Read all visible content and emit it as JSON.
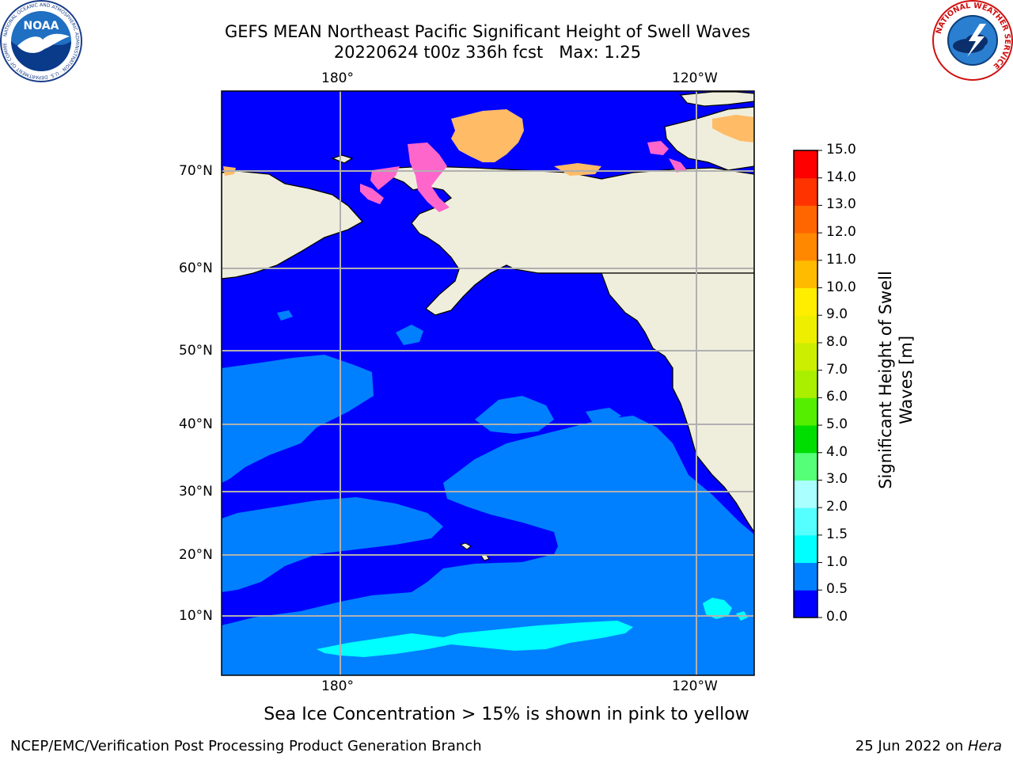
{
  "title": {
    "line1": "GEFS MEAN Northeast Pacific Significant Height of Swell Waves",
    "line2": "20220624 t00z 336h fcst   Max: 1.25"
  },
  "logos": {
    "left": "noaa-logo",
    "right": "national-weather-service-logo",
    "left_ring_text": "NATIONAL OCEANIC AND ATMOSPHERIC ADMINISTRATION · U.S. DEPARTMENT OF COMMERCE",
    "left_center_text": "NOAA",
    "right_ring_text": "NATIONAL WEATHER SERVICE"
  },
  "map": {
    "lon_labels": [
      "180°",
      "120°W"
    ],
    "lat_labels": [
      "70°N",
      "60°N",
      "50°N",
      "40°N",
      "30°N",
      "20°N",
      "10°N"
    ],
    "colors": {
      "land": "#efeedd",
      "swell_0_05": "#0000ff",
      "swell_05_1": "#0080ff",
      "swell_1_15": "#00ffff",
      "ice_pink": "#ff66cc",
      "ice_orange": "#ffbb66",
      "grid": "#b0b0b0"
    }
  },
  "colorbar": {
    "title_line1": "Significant Height of Swell",
    "title_line2": "Waves [m]",
    "ticks": [
      "0.0",
      "0.5",
      "1.0",
      "1.5",
      "2.0",
      "3.0",
      "4.0",
      "5.0",
      "6.0",
      "7.0",
      "8.0",
      "9.0",
      "10.0",
      "11.0",
      "12.0",
      "13.0",
      "14.0",
      "15.0"
    ],
    "colors": [
      "#0000ff",
      "#0080ff",
      "#00ffff",
      "#55ffff",
      "#aaffff",
      "#55ff77",
      "#00dd00",
      "#55ee00",
      "#aaee00",
      "#ccee00",
      "#eeee00",
      "#ffee00",
      "#ffbb00",
      "#ff8800",
      "#ff6600",
      "#ff3300",
      "#ff0000"
    ]
  },
  "footer": {
    "note": "Sea Ice Concentration > 15% is shown in pink to yellow",
    "left": "NCEP/EMC/Verification Post Processing Product Generation Branch",
    "right_date": "25 Jun 2022 on ",
    "right_host": "Hera"
  }
}
